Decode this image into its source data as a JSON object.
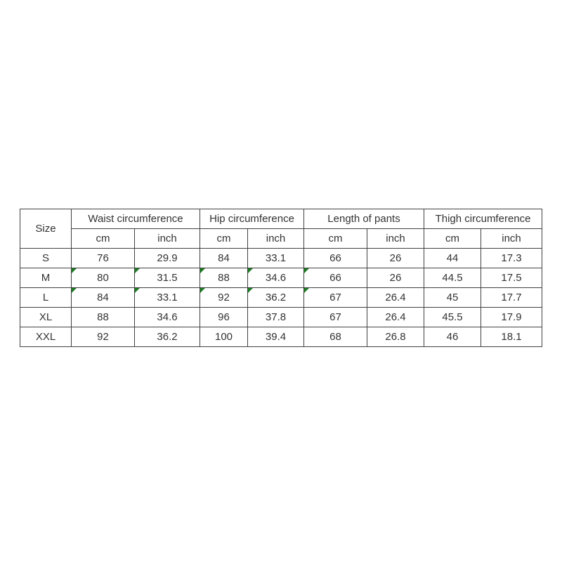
{
  "theme": {
    "background": "#ffffff",
    "text_color": "#333333",
    "border_color": "#404040",
    "comment_marker_color": "#1e7e24"
  },
  "table": {
    "header": {
      "size_label": "Size",
      "groups": [
        "Waist circumference",
        "Hip circumference",
        "Length of pants",
        "Thigh circumference"
      ],
      "units": [
        "cm",
        "inch",
        "cm",
        "inch",
        "cm",
        "inch",
        "cm",
        "inch"
      ]
    },
    "rows": [
      {
        "cells": [
          "S",
          "76",
          "29.9",
          "84",
          "33.1",
          "66",
          "26",
          "44",
          "17.3"
        ]
      },
      {
        "cells": [
          "M",
          "80",
          "31.5",
          "88",
          "34.6",
          "66",
          "26",
          "44.5",
          "17.5"
        ]
      },
      {
        "cells": [
          "L",
          "84",
          "33.1",
          "92",
          "36.2",
          "67",
          "26.4",
          "45",
          "17.7"
        ]
      },
      {
        "cells": [
          "XL",
          "88",
          "34.6",
          "96",
          "37.8",
          "67",
          "26.4",
          "45.5",
          "17.9"
        ]
      },
      {
        "cells": [
          "XXL",
          "92",
          "36.2",
          "100",
          "39.4",
          "68",
          "26.8",
          "46",
          "18.1"
        ]
      }
    ],
    "comment_marker_cells": [
      [
        1,
        1
      ],
      [
        1,
        2
      ],
      [
        1,
        3
      ],
      [
        1,
        4
      ],
      [
        1,
        5
      ],
      [
        2,
        1
      ],
      [
        2,
        2
      ],
      [
        2,
        3
      ],
      [
        2,
        4
      ],
      [
        2,
        5
      ]
    ]
  },
  "chart_data": {
    "type": "table",
    "title": "",
    "columns": [
      "Size",
      "Waist circumference (cm)",
      "Waist circumference (inch)",
      "Hip circumference (cm)",
      "Hip circumference (inch)",
      "Length of pants (cm)",
      "Length of pants (inch)",
      "Thigh circumference (cm)",
      "Thigh circumference (inch)"
    ],
    "rows": [
      [
        "S",
        76,
        29.9,
        84,
        33.1,
        66,
        26,
        44,
        17.3
      ],
      [
        "M",
        80,
        31.5,
        88,
        34.6,
        66,
        26,
        44.5,
        17.5
      ],
      [
        "L",
        84,
        33.1,
        92,
        36.2,
        67,
        26.4,
        45,
        17.7
      ],
      [
        "XL",
        88,
        34.6,
        96,
        37.8,
        67,
        26.4,
        45.5,
        17.9
      ],
      [
        "XXL",
        92,
        36.2,
        100,
        39.4,
        68,
        26.8,
        46,
        18.1
      ]
    ]
  }
}
